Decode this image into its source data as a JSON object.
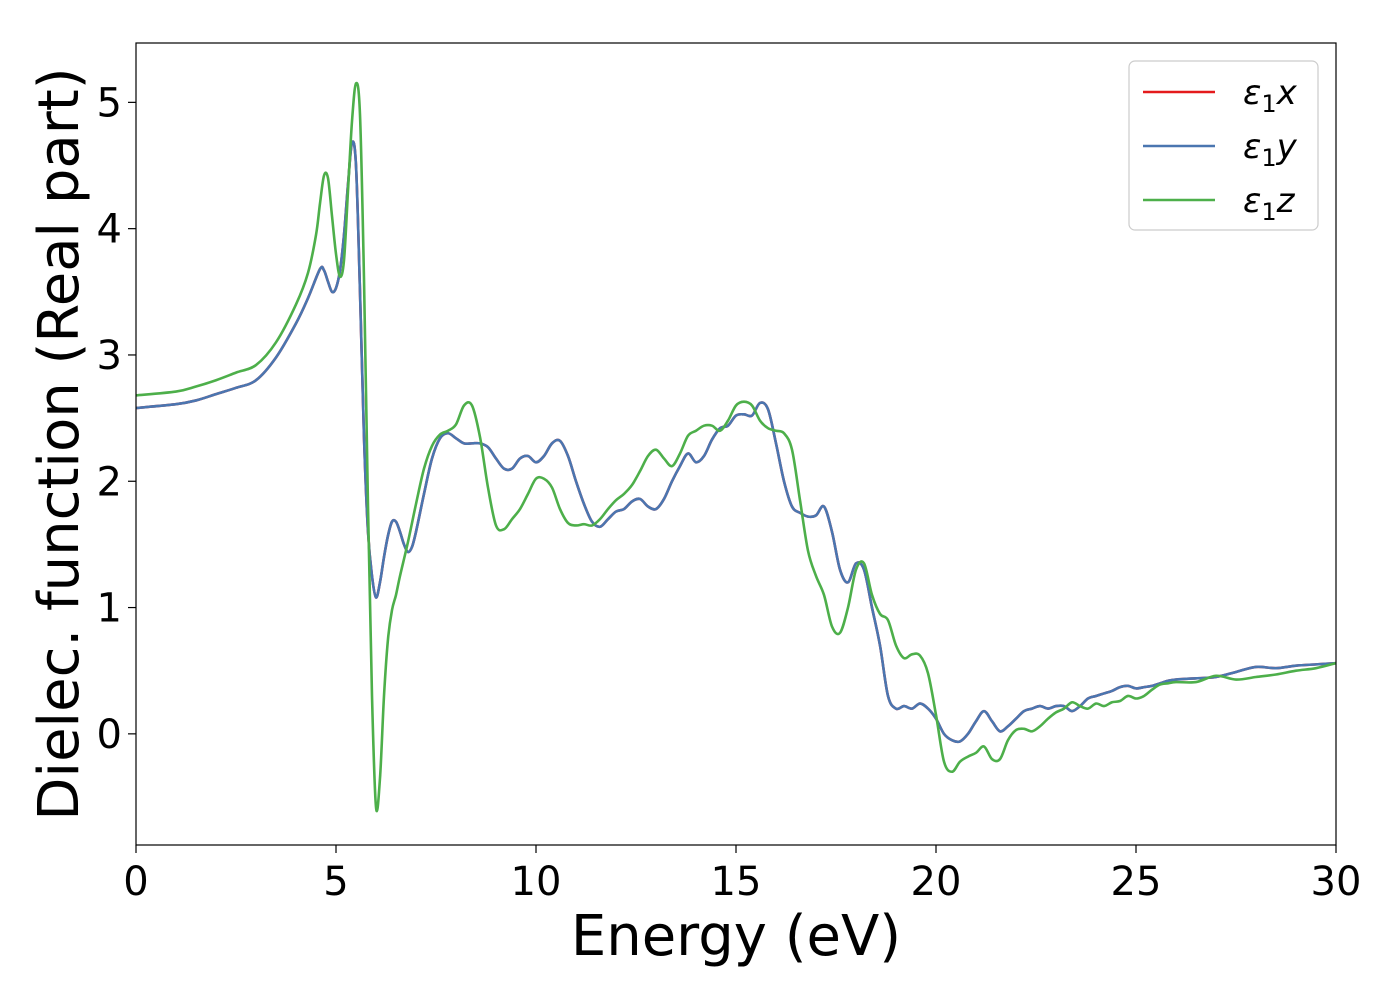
{
  "chart_data": {
    "type": "line",
    "xlabel": "Energy (eV)",
    "ylabel": "Dielec. function (Real part)",
    "xlim": [
      0,
      30
    ],
    "ylim": [
      -0.88,
      5.47
    ],
    "xticks": [
      0,
      5,
      10,
      15,
      20,
      25,
      30
    ],
    "yticks": [
      0,
      1,
      2,
      3,
      4,
      5
    ],
    "grid": false,
    "legend_position": "top-right",
    "series": [
      {
        "name": "ε1x",
        "legend_main": "ε",
        "legend_sub": "1",
        "legend_var": "x",
        "color": "#e41a1c",
        "x": [
          0,
          1,
          1.5,
          2,
          2.5,
          3,
          3.5,
          4,
          4.3,
          4.6,
          4.7,
          4.8,
          4.9,
          5,
          5.1,
          5.2,
          5.3,
          5.4,
          5.5,
          5.6,
          5.7,
          5.8,
          5.9,
          6,
          6.1,
          6.2,
          6.3,
          6.4,
          6.5,
          6.6,
          6.7,
          6.8,
          6.9,
          7,
          7.2,
          7.4,
          7.6,
          7.8,
          8,
          8.2,
          8.4,
          8.6,
          8.8,
          9,
          9.2,
          9.4,
          9.6,
          9.8,
          10,
          10.2,
          10.4,
          10.6,
          10.8,
          11,
          11.2,
          11.4,
          11.6,
          11.8,
          12,
          12.2,
          12.4,
          12.6,
          12.8,
          13,
          13.2,
          13.4,
          13.6,
          13.8,
          14,
          14.2,
          14.4,
          14.6,
          14.8,
          15,
          15.2,
          15.4,
          15.6,
          15.8,
          16,
          16.2,
          16.4,
          16.6,
          16.8,
          17,
          17.2,
          17.4,
          17.6,
          17.8,
          18,
          18.2,
          18.4,
          18.6,
          18.8,
          19,
          19.2,
          19.4,
          19.6,
          19.8,
          20,
          20.2,
          20.4,
          20.6,
          20.8,
          21,
          21.2,
          21.4,
          21.6,
          21.8,
          22,
          22.2,
          22.4,
          22.6,
          22.8,
          23,
          23.2,
          23.4,
          23.6,
          23.8,
          24,
          24.2,
          24.4,
          24.6,
          24.8,
          25,
          25.2,
          25.4,
          25.6,
          25.8,
          26,
          26.5,
          27,
          27.5,
          28,
          28.5,
          29,
          29.5,
          30
        ],
        "y": [
          2.58,
          2.61,
          2.64,
          2.69,
          2.74,
          2.8,
          2.98,
          3.25,
          3.45,
          3.68,
          3.67,
          3.58,
          3.5,
          3.53,
          3.67,
          3.95,
          4.35,
          4.68,
          4.5,
          3.5,
          2.35,
          1.6,
          1.25,
          1.08,
          1.2,
          1.4,
          1.57,
          1.68,
          1.68,
          1.6,
          1.5,
          1.44,
          1.48,
          1.6,
          1.9,
          2.18,
          2.34,
          2.38,
          2.34,
          2.3,
          2.3,
          2.3,
          2.27,
          2.18,
          2.1,
          2.1,
          2.18,
          2.2,
          2.15,
          2.2,
          2.3,
          2.32,
          2.2,
          2.0,
          1.82,
          1.68,
          1.64,
          1.7,
          1.76,
          1.78,
          1.84,
          1.86,
          1.8,
          1.78,
          1.86,
          2.0,
          2.12,
          2.22,
          2.15,
          2.2,
          2.33,
          2.42,
          2.44,
          2.52,
          2.53,
          2.52,
          2.62,
          2.57,
          2.3,
          2.0,
          1.8,
          1.75,
          1.72,
          1.73,
          1.8,
          1.6,
          1.3,
          1.2,
          1.35,
          1.3,
          1.0,
          0.7,
          0.3,
          0.2,
          0.22,
          0.2,
          0.24,
          0.2,
          0.12,
          0.0,
          -0.05,
          -0.06,
          0.0,
          0.1,
          0.18,
          0.1,
          0.02,
          0.06,
          0.12,
          0.18,
          0.2,
          0.22,
          0.2,
          0.22,
          0.22,
          0.18,
          0.22,
          0.28,
          0.3,
          0.32,
          0.34,
          0.37,
          0.38,
          0.36,
          0.37,
          0.38,
          0.4,
          0.42,
          0.43,
          0.44,
          0.45,
          0.49,
          0.53,
          0.52,
          0.54,
          0.55,
          0.56
        ]
      },
      {
        "name": "ε1y",
        "legend_main": "ε",
        "legend_sub": "1",
        "legend_var": "y",
        "color": "#4a76b0",
        "x": [
          0,
          1,
          1.5,
          2,
          2.5,
          3,
          3.5,
          4,
          4.3,
          4.6,
          4.7,
          4.8,
          4.9,
          5,
          5.1,
          5.2,
          5.3,
          5.4,
          5.5,
          5.6,
          5.7,
          5.8,
          5.9,
          6,
          6.1,
          6.2,
          6.3,
          6.4,
          6.5,
          6.6,
          6.7,
          6.8,
          6.9,
          7,
          7.2,
          7.4,
          7.6,
          7.8,
          8,
          8.2,
          8.4,
          8.6,
          8.8,
          9,
          9.2,
          9.4,
          9.6,
          9.8,
          10,
          10.2,
          10.4,
          10.6,
          10.8,
          11,
          11.2,
          11.4,
          11.6,
          11.8,
          12,
          12.2,
          12.4,
          12.6,
          12.8,
          13,
          13.2,
          13.4,
          13.6,
          13.8,
          14,
          14.2,
          14.4,
          14.6,
          14.8,
          15,
          15.2,
          15.4,
          15.6,
          15.8,
          16,
          16.2,
          16.4,
          16.6,
          16.8,
          17,
          17.2,
          17.4,
          17.6,
          17.8,
          18,
          18.2,
          18.4,
          18.6,
          18.8,
          19,
          19.2,
          19.4,
          19.6,
          19.8,
          20,
          20.2,
          20.4,
          20.6,
          20.8,
          21,
          21.2,
          21.4,
          21.6,
          21.8,
          22,
          22.2,
          22.4,
          22.6,
          22.8,
          23,
          23.2,
          23.4,
          23.6,
          23.8,
          24,
          24.2,
          24.4,
          24.6,
          24.8,
          25,
          25.2,
          25.4,
          25.6,
          25.8,
          26,
          26.5,
          27,
          27.5,
          28,
          28.5,
          29,
          29.5,
          30
        ],
        "y": [
          2.58,
          2.61,
          2.64,
          2.69,
          2.74,
          2.8,
          2.98,
          3.25,
          3.45,
          3.68,
          3.67,
          3.58,
          3.5,
          3.53,
          3.67,
          3.95,
          4.35,
          4.68,
          4.5,
          3.5,
          2.35,
          1.6,
          1.25,
          1.08,
          1.2,
          1.4,
          1.57,
          1.68,
          1.68,
          1.6,
          1.5,
          1.44,
          1.48,
          1.6,
          1.9,
          2.18,
          2.34,
          2.38,
          2.34,
          2.3,
          2.3,
          2.3,
          2.27,
          2.18,
          2.1,
          2.1,
          2.18,
          2.2,
          2.15,
          2.2,
          2.3,
          2.32,
          2.2,
          2.0,
          1.82,
          1.68,
          1.64,
          1.7,
          1.76,
          1.78,
          1.84,
          1.86,
          1.8,
          1.78,
          1.86,
          2.0,
          2.12,
          2.22,
          2.15,
          2.2,
          2.33,
          2.42,
          2.44,
          2.52,
          2.53,
          2.52,
          2.62,
          2.57,
          2.3,
          2.0,
          1.8,
          1.75,
          1.72,
          1.73,
          1.8,
          1.6,
          1.3,
          1.2,
          1.35,
          1.3,
          1.0,
          0.7,
          0.3,
          0.2,
          0.22,
          0.2,
          0.24,
          0.2,
          0.12,
          0.0,
          -0.05,
          -0.06,
          0.0,
          0.1,
          0.18,
          0.1,
          0.02,
          0.06,
          0.12,
          0.18,
          0.2,
          0.22,
          0.2,
          0.22,
          0.22,
          0.18,
          0.22,
          0.28,
          0.3,
          0.32,
          0.34,
          0.37,
          0.38,
          0.36,
          0.37,
          0.38,
          0.4,
          0.42,
          0.43,
          0.44,
          0.45,
          0.49,
          0.53,
          0.52,
          0.54,
          0.55,
          0.56
        ]
      },
      {
        "name": "ε1z",
        "legend_main": "ε",
        "legend_sub": "1",
        "legend_var": "z",
        "color": "#4daf4a",
        "x": [
          0,
          1,
          1.5,
          2,
          2.5,
          3,
          3.5,
          4,
          4.3,
          4.5,
          4.6,
          4.7,
          4.8,
          4.9,
          5,
          5.1,
          5.2,
          5.3,
          5.4,
          5.5,
          5.6,
          5.7,
          5.8,
          5.9,
          6,
          6.1,
          6.2,
          6.3,
          6.4,
          6.5,
          6.6,
          6.8,
          7,
          7.2,
          7.4,
          7.6,
          7.8,
          8,
          8.2,
          8.4,
          8.6,
          8.8,
          9,
          9.2,
          9.4,
          9.6,
          9.8,
          10,
          10.2,
          10.4,
          10.6,
          10.8,
          11,
          11.2,
          11.4,
          11.6,
          11.8,
          12,
          12.2,
          12.4,
          12.6,
          12.8,
          13,
          13.2,
          13.4,
          13.6,
          13.8,
          14,
          14.2,
          14.4,
          14.6,
          14.8,
          15,
          15.2,
          15.4,
          15.6,
          15.8,
          16,
          16.2,
          16.4,
          16.6,
          16.8,
          17,
          17.2,
          17.4,
          17.6,
          17.8,
          18,
          18.2,
          18.4,
          18.6,
          18.8,
          19,
          19.2,
          19.4,
          19.6,
          19.8,
          20,
          20.2,
          20.4,
          20.6,
          20.8,
          21,
          21.2,
          21.4,
          21.6,
          21.8,
          22,
          22.2,
          22.4,
          22.6,
          22.8,
          23,
          23.2,
          23.4,
          23.6,
          23.8,
          24,
          24.2,
          24.4,
          24.6,
          24.8,
          25,
          25.2,
          25.4,
          25.6,
          25.8,
          26,
          26.5,
          27,
          27.5,
          28,
          28.5,
          29,
          29.5,
          30
        ],
        "y": [
          2.68,
          2.71,
          2.75,
          2.8,
          2.86,
          2.92,
          3.1,
          3.4,
          3.65,
          3.95,
          4.2,
          4.42,
          4.4,
          4.1,
          3.8,
          3.62,
          3.75,
          4.3,
          4.85,
          5.15,
          4.9,
          3.6,
          1.8,
          0.3,
          -0.58,
          -0.35,
          0.3,
          0.75,
          0.98,
          1.1,
          1.25,
          1.52,
          1.82,
          2.1,
          2.28,
          2.37,
          2.4,
          2.45,
          2.6,
          2.6,
          2.35,
          1.95,
          1.65,
          1.62,
          1.7,
          1.78,
          1.9,
          2.02,
          2.02,
          1.95,
          1.78,
          1.67,
          1.65,
          1.66,
          1.65,
          1.7,
          1.78,
          1.85,
          1.9,
          1.97,
          2.08,
          2.2,
          2.25,
          2.18,
          2.12,
          2.22,
          2.36,
          2.4,
          2.44,
          2.44,
          2.4,
          2.48,
          2.6,
          2.63,
          2.6,
          2.48,
          2.42,
          2.4,
          2.38,
          2.25,
          1.85,
          1.45,
          1.25,
          1.1,
          0.85,
          0.8,
          1.0,
          1.3,
          1.35,
          1.1,
          0.95,
          0.9,
          0.7,
          0.6,
          0.63,
          0.62,
          0.48,
          0.15,
          -0.22,
          -0.3,
          -0.22,
          -0.18,
          -0.15,
          -0.1,
          -0.2,
          -0.2,
          -0.05,
          0.03,
          0.04,
          0.02,
          0.06,
          0.12,
          0.17,
          0.2,
          0.25,
          0.22,
          0.2,
          0.24,
          0.22,
          0.25,
          0.26,
          0.3,
          0.28,
          0.3,
          0.35,
          0.39,
          0.4,
          0.41,
          0.41,
          0.46,
          0.43,
          0.45,
          0.47,
          0.5,
          0.52,
          0.56
        ]
      }
    ]
  }
}
